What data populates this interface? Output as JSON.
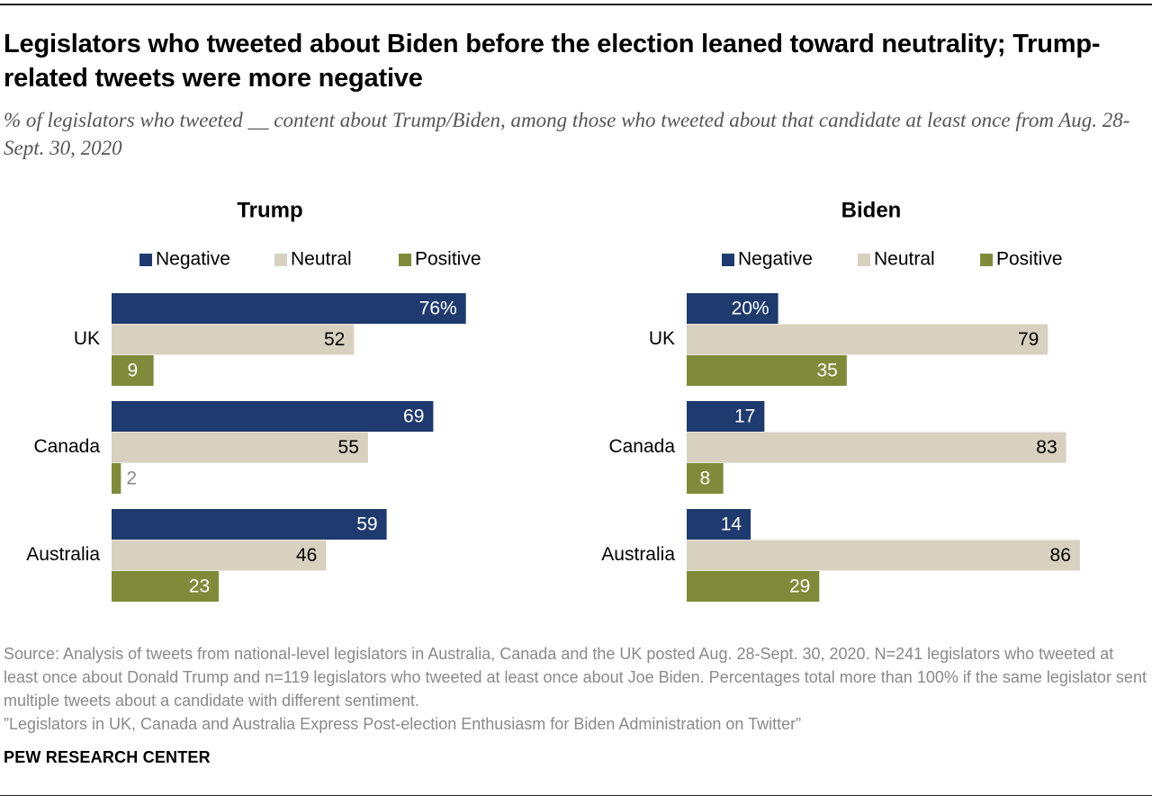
{
  "title": "Legislators who tweeted about Biden before the election leaned toward neutrality; Trump-related tweets were more negative",
  "subtitle": "% of legislators who tweeted __ content about Trump/Biden, among those who tweeted about that candidate at least once from Aug. 28-Sept. 30, 2020",
  "source": "Source: Analysis of tweets from national-level legislators in Australia, Canada and the UK posted Aug. 28-Sept. 30, 2020. N=241 legislators who tweeted at least once about Donald Trump and n=119 legislators who tweeted at least once about Joe Biden. Percentages total more than 100% if the same legislator sent multiple tweets about a candidate with different sentiment.",
  "report": "”Legislators in UK, Canada and Australia Express Post-election Enthusiasm for Biden Administration on Twitter”",
  "organization": "PEW RESEARCH CENTER",
  "colors": {
    "negative": "#1f3a6e",
    "neutral": "#d8d1c0",
    "positive": "#7f8b3a"
  },
  "chart_data": [
    {
      "type": "bar",
      "orientation": "horizontal",
      "title": "Trump",
      "categories": [
        "UK",
        "Canada",
        "Australia"
      ],
      "series": [
        {
          "name": "Negative",
          "values": [
            76,
            69,
            59
          ]
        },
        {
          "name": "Neutral",
          "values": [
            52,
            55,
            46
          ]
        },
        {
          "name": "Positive",
          "values": [
            9,
            2,
            23
          ]
        }
      ],
      "value_labels": [
        [
          "76%",
          "69",
          "59"
        ],
        [
          "52",
          "55",
          "46"
        ],
        [
          "9",
          "2",
          "23"
        ]
      ],
      "xlim": [
        0,
        100
      ],
      "legend_position": "top",
      "grid": false
    },
    {
      "type": "bar",
      "orientation": "horizontal",
      "title": "Biden",
      "categories": [
        "UK",
        "Canada",
        "Australia"
      ],
      "series": [
        {
          "name": "Negative",
          "values": [
            20,
            17,
            14
          ]
        },
        {
          "name": "Neutral",
          "values": [
            79,
            83,
            86
          ]
        },
        {
          "name": "Positive",
          "values": [
            35,
            8,
            29
          ]
        }
      ],
      "value_labels": [
        [
          "20%",
          "17",
          "14"
        ],
        [
          "79",
          "83",
          "86"
        ],
        [
          "35",
          "8",
          "29"
        ]
      ],
      "xlim": [
        0,
        100
      ],
      "legend_position": "top",
      "grid": false
    }
  ]
}
